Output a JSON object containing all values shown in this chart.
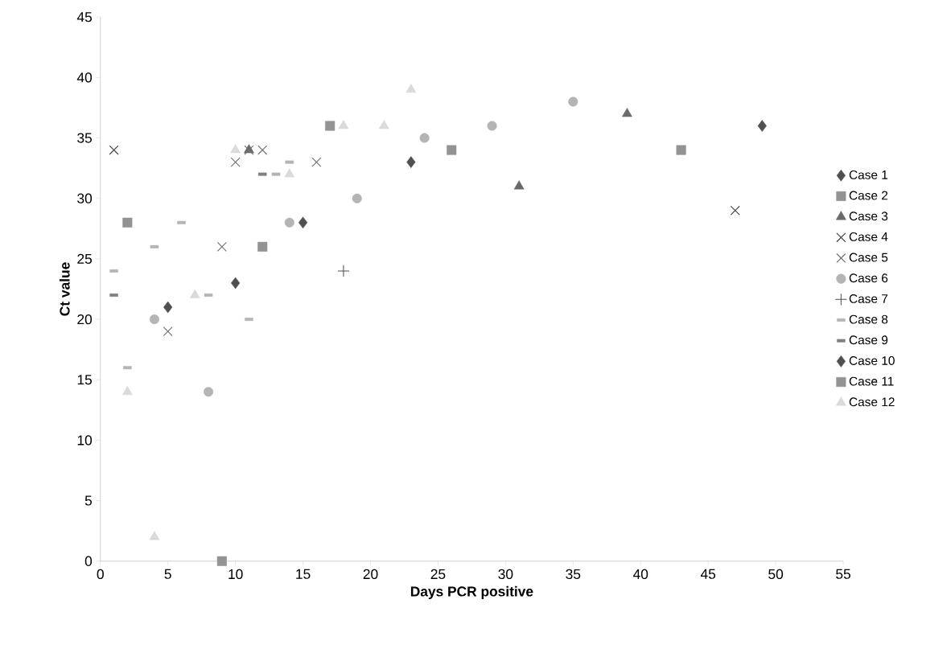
{
  "chart_data": {
    "type": "scatter",
    "xlabel": "Days PCR positive",
    "ylabel": "Ct value",
    "xlim": [
      0,
      55
    ],
    "ylim": [
      0,
      45
    ],
    "xticks": [
      0,
      5,
      10,
      15,
      20,
      25,
      30,
      35,
      40,
      45,
      50,
      55
    ],
    "yticks": [
      0,
      5,
      10,
      15,
      20,
      25,
      30,
      35,
      40,
      45
    ],
    "grid": false,
    "legend": "right",
    "series": [
      {
        "name": "Case 1",
        "color": "#505050",
        "marker": "diamond",
        "x": [
          5,
          15,
          23
        ],
        "values": [
          21,
          28,
          33
        ]
      },
      {
        "name": "Case 2",
        "color": "#939393",
        "marker": "square",
        "x": [
          2,
          12,
          26
        ],
        "values": [
          28,
          26,
          34
        ]
      },
      {
        "name": "Case 3",
        "color": "#6a6a6a",
        "marker": "triangle",
        "x": [
          11,
          31,
          39
        ],
        "values": [
          34,
          31,
          37
        ]
      },
      {
        "name": "Case 4",
        "color": "#404040",
        "marker": "cross",
        "x": [
          1,
          47
        ],
        "values": [
          34,
          29
        ]
      },
      {
        "name": "Case 5",
        "color": "#707070",
        "marker": "cross",
        "x": [
          5,
          9,
          10,
          11,
          12,
          16
        ],
        "values": [
          19,
          26,
          33,
          34,
          34,
          33
        ]
      },
      {
        "name": "Case 6",
        "color": "#b4b4b4",
        "marker": "circle",
        "x": [
          4,
          8,
          14,
          19,
          24,
          29,
          35
        ],
        "values": [
          20,
          14,
          28,
          30,
          35,
          36,
          38
        ]
      },
      {
        "name": "Case 7",
        "color": "#505050",
        "marker": "plus",
        "x": [
          18
        ],
        "values": [
          24
        ]
      },
      {
        "name": "Case 8",
        "color": "#b4b4b4",
        "x": [
          1,
          2,
          4,
          6,
          8,
          11,
          13,
          14
        ],
        "values": [
          24,
          16,
          26,
          28,
          22,
          20,
          32,
          33
        ]
      },
      {
        "name": "Case 9",
        "color": "#808080",
        "x": [
          1,
          12
        ],
        "values": [
          22,
          32
        ]
      },
      {
        "name": "Case 10",
        "color": "#505050",
        "marker": "diamond",
        "x": [
          10,
          49
        ],
        "values": [
          23,
          36
        ]
      },
      {
        "name": "Case 11",
        "color": "#939393",
        "marker": "square",
        "x": [
          9,
          17,
          43
        ],
        "values": [
          0,
          36,
          34
        ]
      },
      {
        "name": "Case 12",
        "color": "#dadada",
        "marker": "triangle",
        "x": [
          2,
          4,
          7,
          10,
          14,
          18,
          21,
          23
        ],
        "values": [
          14,
          2,
          22,
          34,
          32,
          36,
          36,
          39
        ]
      }
    ]
  }
}
